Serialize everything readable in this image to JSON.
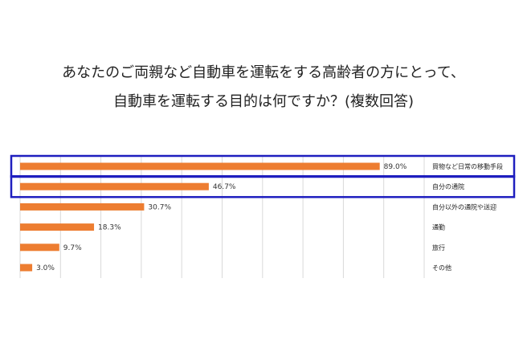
{
  "title_line1": "あなたのご両親など自動車を運転をする高齢者の方にとって、",
  "title_line2": "自動車を運転する目的は何ですか？(複数回答)",
  "chart_data": {
    "type": "bar",
    "orientation": "horizontal",
    "categories": [
      "買物など日常の移動手段",
      "自分の通院",
      "自分以外の通院や送迎",
      "通勤",
      "旅行",
      "その他"
    ],
    "values": [
      89.0,
      46.7,
      30.7,
      18.3,
      9.7,
      3.0
    ],
    "value_labels": [
      "89.0%",
      "46.7%",
      "30.7%",
      "18.3%",
      "9.7%",
      "3.0%"
    ],
    "xlim": [
      0,
      100
    ],
    "grid": true,
    "highlighted_categories": [
      "買物など日常の移動手段",
      "自分の通院"
    ],
    "colors": {
      "bar": "#ED7D31",
      "highlight_box": "#1F1FBF",
      "grid": "#D9D9D9"
    }
  }
}
